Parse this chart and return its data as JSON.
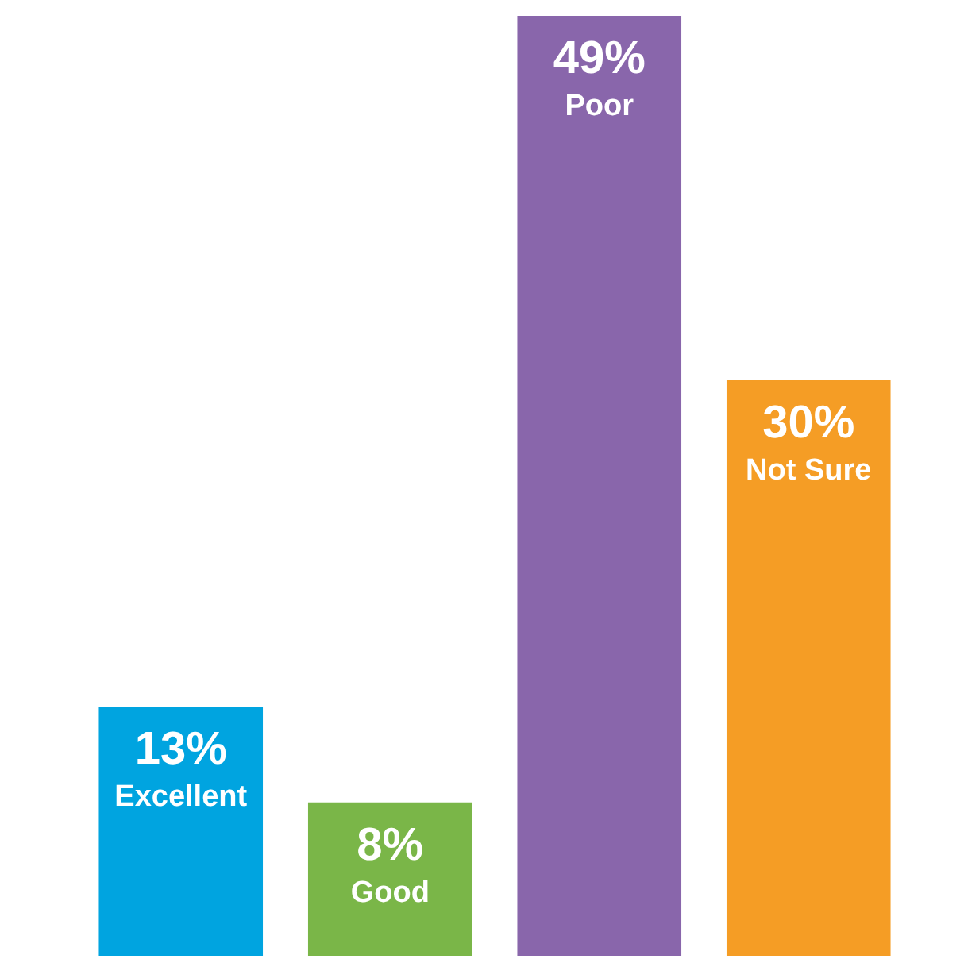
{
  "chart_data": {
    "type": "bar",
    "categories": [
      "Excellent",
      "Good",
      "Poor",
      "Not Sure"
    ],
    "values": [
      13,
      8,
      49,
      30
    ],
    "value_labels": [
      "13%",
      "8%",
      "49%",
      "30%"
    ],
    "colors": [
      "#00a4e0",
      "#7ab648",
      "#8966ab",
      "#f59d25"
    ]
  }
}
